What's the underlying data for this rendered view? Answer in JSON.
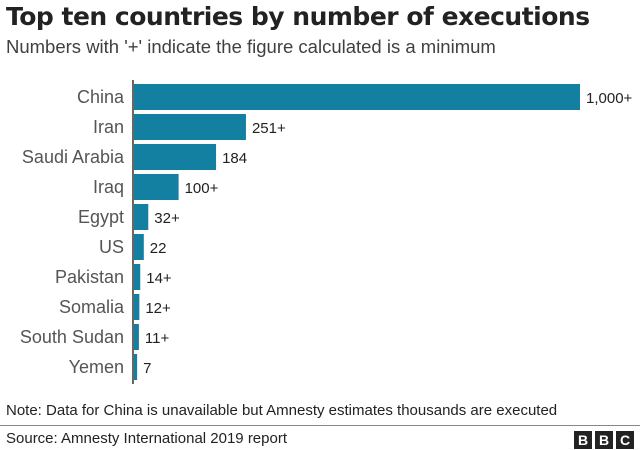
{
  "chart_data": {
    "type": "bar",
    "orientation": "horizontal",
    "title": "Top ten countries by number of executions",
    "subtitle": "Numbers with '+' indicate the figure calculated is a minimum",
    "categories": [
      "China",
      "Iran",
      "Saudi Arabia",
      "Iraq",
      "Egypt",
      "US",
      "Pakistan",
      "Somalia",
      "South Sudan",
      "Yemen"
    ],
    "values": [
      1000,
      251,
      184,
      100,
      32,
      22,
      14,
      12,
      11,
      7
    ],
    "data_labels": [
      "1,000+",
      "251+",
      "184",
      "100+",
      "32+",
      "22",
      "14+",
      "12+",
      "11+",
      "7"
    ],
    "xlim": [
      0,
      1000
    ],
    "grid": false,
    "bar_color": "#1380A1"
  },
  "note": "Note: Data for China is unavailable but Amnesty estimates thousands are executed",
  "source": "Source: Amnesty International 2019 report",
  "logo": [
    "B",
    "B",
    "C"
  ]
}
